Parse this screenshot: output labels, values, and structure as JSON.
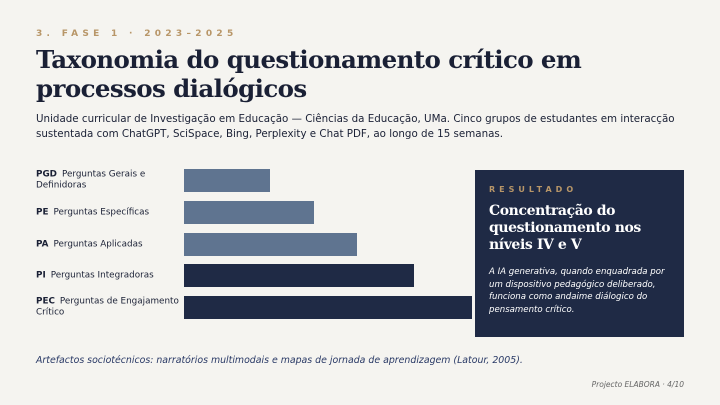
{
  "slide": {
    "kicker": "3.  FASE 1 · 2023–2025",
    "title": "Taxonomia do questionamento crítico em processos dialógicos",
    "subtitle": "Unidade curricular de Investigação em Educação — Ciências da Educação, UMa. Cinco grupos de estudantes em interacção sustentada com ChatGPT, SciSpace, Bing, Perplexity e Chat PDF, ao longo de 15 semanas.",
    "caption": "Artefactos sociotécnicos: narratórios multimodais e mapas de jornada de aprendizagem (Latour, 2005).",
    "footer": "Projecto ELABORA  ·  4/10"
  },
  "panel": {
    "tag": "RESULTADO",
    "heading": "Concentração do questionamento nos níveis IV e V",
    "text": "A IA generativa, quando enquadrada por um dispositivo pedagógico deliberado, funciona como andaime diálogico do pensamento crítico."
  },
  "chart_data": {
    "type": "bar",
    "orientation": "horizontal",
    "categories": [
      {
        "code": "PGD",
        "label": "Perguntas Gerais e Definidoras"
      },
      {
        "code": "PE",
        "label": "Perguntas Específicas"
      },
      {
        "code": "PA",
        "label": "Perguntas Aplicadas"
      },
      {
        "code": "PI",
        "label": "Perguntas Integradoras"
      },
      {
        "code": "PEC",
        "label": "Perguntas de Engajamento Crítico"
      }
    ],
    "values": [
      0.3,
      0.45,
      0.6,
      0.8,
      1.0
    ],
    "colors": [
      "#5f7490",
      "#5f7490",
      "#5f7490",
      "#1f2a45",
      "#1f2a45"
    ],
    "xlim": [
      0,
      1
    ]
  }
}
